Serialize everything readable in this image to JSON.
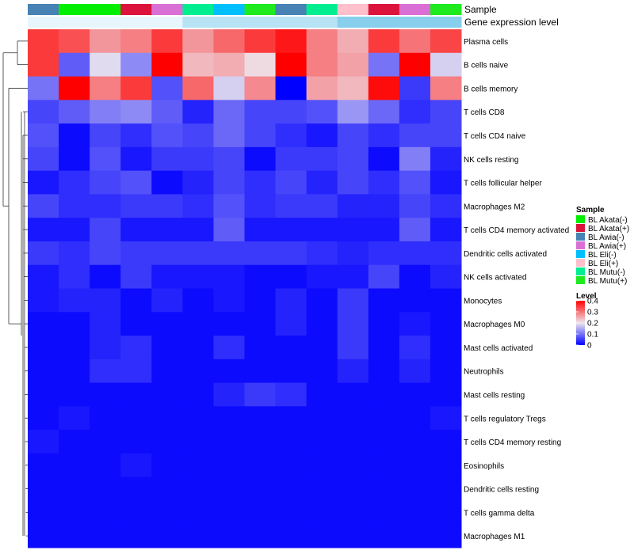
{
  "chart_data": {
    "type": "heatmap",
    "title": "",
    "annotation_rows": {
      "sample_label": "Sample",
      "gene_label": "Gene expression level"
    },
    "columns": {
      "samples": [
        "BL Awia(-)",
        "BL Akata(-)",
        "BL Akata(-)",
        "BL Akata(+)",
        "BL Awia(+)",
        "BL Mutu(-)",
        "BL Eli(-)",
        "BL Mutu(+)",
        "BL Awia(-)",
        "BL Mutu(-)",
        "BL Eli(+)",
        "BL Akata(+)",
        "BL Awia(+)",
        "BL Mutu(+)"
      ],
      "gene_expression_level": [
        "low",
        "low",
        "low",
        "low",
        "low",
        "medium",
        "medium",
        "medium",
        "medium",
        "medium",
        "high",
        "high",
        "high",
        "high"
      ]
    },
    "gene_expression_colors": {
      "low": "#e7f6fc",
      "medium": "#b8e3f4",
      "high": "#87cfec"
    },
    "rows": [
      "Plasma cells",
      "B cells naive",
      "B cells memory",
      "T cells CD8",
      "T cells CD4 naive",
      "NK cells resting",
      "T cells follicular helper",
      "Macrophages M2",
      "T cells CD4 memory activated",
      "Dendritic cells activated",
      "NK cells activated",
      "Monocytes",
      "Macrophages M0",
      "Mast cells activated",
      "Neutrophils",
      "Mast cells resting",
      "T cells regulatory  Tregs",
      "T cells CD4 memory resting",
      "Eosinophils",
      "Dendritic cells resting",
      "T cells gamma delta",
      "Macrophages M1"
    ],
    "values": [
      [
        0.35,
        0.33,
        0.27,
        0.29,
        0.35,
        0.27,
        0.31,
        0.35,
        0.38,
        0.29,
        0.25,
        0.35,
        0.3,
        0.34
      ],
      [
        0.35,
        0.08,
        0.19,
        0.12,
        0.4,
        0.24,
        0.25,
        0.21,
        0.4,
        0.29,
        0.26,
        0.1,
        0.4,
        0.18
      ],
      [
        0.1,
        0.4,
        0.29,
        0.35,
        0.07,
        0.31,
        0.18,
        0.28,
        0.0,
        0.26,
        0.24,
        0.39,
        0.05,
        0.29
      ],
      [
        0.06,
        0.08,
        0.11,
        0.12,
        0.08,
        0.03,
        0.09,
        0.06,
        0.06,
        0.07,
        0.13,
        0.09,
        0.04,
        0.06
      ],
      [
        0.07,
        0.01,
        0.06,
        0.04,
        0.07,
        0.06,
        0.09,
        0.06,
        0.04,
        0.02,
        0.06,
        0.04,
        0.06,
        0.06
      ],
      [
        0.06,
        0.01,
        0.07,
        0.02,
        0.05,
        0.05,
        0.06,
        0.01,
        0.05,
        0.05,
        0.06,
        0.01,
        0.11,
        0.03
      ],
      [
        0.02,
        0.04,
        0.06,
        0.07,
        0.01,
        0.03,
        0.06,
        0.04,
        0.06,
        0.03,
        0.06,
        0.04,
        0.07,
        0.02
      ],
      [
        0.06,
        0.04,
        0.04,
        0.05,
        0.05,
        0.04,
        0.07,
        0.04,
        0.05,
        0.05,
        0.03,
        0.03,
        0.06,
        0.04
      ],
      [
        0.02,
        0.02,
        0.06,
        0.02,
        0.02,
        0.02,
        0.08,
        0.02,
        0.02,
        0.02,
        0.02,
        0.02,
        0.08,
        0.02
      ],
      [
        0.05,
        0.04,
        0.06,
        0.05,
        0.05,
        0.05,
        0.05,
        0.05,
        0.05,
        0.04,
        0.03,
        0.04,
        0.04,
        0.04
      ],
      [
        0.02,
        0.04,
        0.01,
        0.05,
        0.02,
        0.02,
        0.02,
        0.01,
        0.01,
        0.02,
        0.02,
        0.06,
        0.01,
        0.03
      ],
      [
        0.02,
        0.03,
        0.03,
        0.01,
        0.03,
        0.01,
        0.02,
        0.01,
        0.03,
        0.01,
        0.05,
        0.01,
        0.01,
        0.01
      ],
      [
        0.01,
        0.01,
        0.03,
        0.01,
        0.01,
        0.01,
        0.01,
        0.01,
        0.03,
        0.01,
        0.05,
        0.01,
        0.02,
        0.01
      ],
      [
        0.01,
        0.01,
        0.03,
        0.04,
        0.01,
        0.01,
        0.04,
        0.01,
        0.01,
        0.01,
        0.05,
        0.01,
        0.04,
        0.01
      ],
      [
        0.01,
        0.01,
        0.04,
        0.04,
        0.01,
        0.01,
        0.01,
        0.01,
        0.01,
        0.01,
        0.03,
        0.01,
        0.03,
        0.01
      ],
      [
        0.01,
        0.01,
        0.01,
        0.01,
        0.01,
        0.01,
        0.03,
        0.05,
        0.04,
        0.01,
        0.01,
        0.01,
        0.01,
        0.01
      ],
      [
        0.01,
        0.02,
        0.01,
        0.01,
        0.01,
        0.01,
        0.01,
        0.01,
        0.01,
        0.01,
        0.01,
        0.01,
        0.01,
        0.02
      ],
      [
        0.02,
        0.01,
        0.01,
        0.01,
        0.01,
        0.01,
        0.01,
        0.01,
        0.01,
        0.01,
        0.01,
        0.01,
        0.01,
        0.01
      ],
      [
        0.01,
        0.01,
        0.01,
        0.02,
        0.01,
        0.01,
        0.01,
        0.01,
        0.01,
        0.01,
        0.01,
        0.01,
        0.01,
        0.01
      ],
      [
        0.01,
        0.01,
        0.01,
        0.01,
        0.01,
        0.01,
        0.01,
        0.01,
        0.01,
        0.01,
        0.01,
        0.01,
        0.01,
        0.01
      ],
      [
        0.01,
        0.01,
        0.01,
        0.01,
        0.01,
        0.01,
        0.01,
        0.01,
        0.01,
        0.01,
        0.01,
        0.01,
        0.01,
        0.01
      ],
      [
        0.01,
        0.01,
        0.01,
        0.01,
        0.01,
        0.01,
        0.01,
        0.01,
        0.01,
        0.01,
        0.01,
        0.01,
        0.01,
        0.01
      ]
    ],
    "color_scale": {
      "min": 0,
      "max": 0.4,
      "low": "#0000ff",
      "mid": "#ede6ee",
      "high": "#ff0000",
      "mid_value": 0.2
    },
    "legend_sample": {
      "title": "Sample",
      "items": [
        {
          "label": "BL Akata(-)",
          "color": "#00ee00"
        },
        {
          "label": "BL Akata(+)",
          "color": "#dc143c"
        },
        {
          "label": "BL Awia(-)",
          "color": "#4682b4"
        },
        {
          "label": "BL Awia(+)",
          "color": "#da70d6"
        },
        {
          "label": "BL Eli(-)",
          "color": "#00bfff"
        },
        {
          "label": "BL Eli(+)",
          "color": "#ffc0cb"
        },
        {
          "label": "BL Mutu(-)",
          "color": "#00ee90"
        },
        {
          "label": "BL Mutu(+)",
          "color": "#1eea1e"
        }
      ]
    },
    "legend_level": {
      "title": "Level",
      "ticks": [
        "0.4",
        "0.3",
        "0.2",
        "0.1",
        "0"
      ],
      "tick_values": [
        0.4,
        0.3,
        0.2,
        0.1,
        0
      ]
    },
    "row_dendrogram": true,
    "legend_position": "right"
  }
}
